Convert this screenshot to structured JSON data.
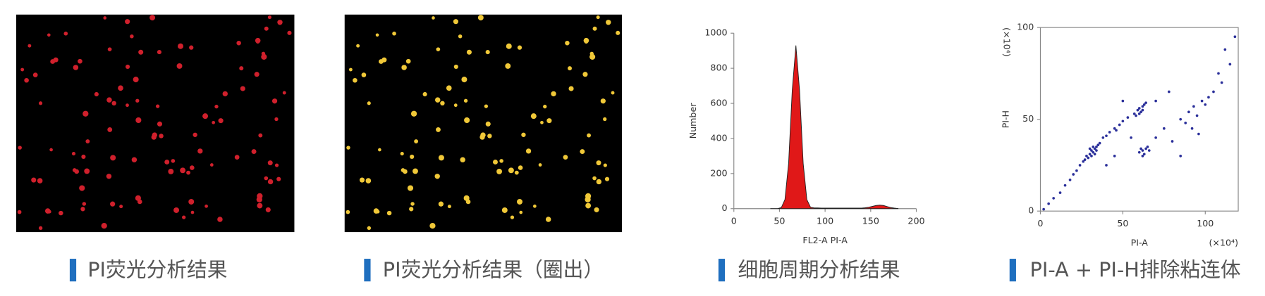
{
  "panels": [
    {
      "caption": "PI荧光分析结果"
    },
    {
      "caption": "PI荧光分析结果（圈出）"
    },
    {
      "caption": "细胞周期分析结果"
    },
    {
      "caption": "PI-A + PI-H排除粘连体"
    }
  ],
  "chart_data": [
    {
      "type": "area",
      "xlabel": "FL2-A PI-A",
      "ylabel": "Number",
      "color": "#e01818",
      "x": [
        40,
        44,
        48,
        52,
        56,
        60,
        64,
        68,
        72,
        76,
        80,
        84,
        88,
        92,
        96,
        100,
        104,
        108,
        112,
        116,
        120,
        124,
        128,
        132,
        136,
        140,
        144,
        148,
        152,
        156,
        160,
        164,
        168,
        172,
        176,
        180
      ],
      "values": [
        0,
        0,
        0,
        6,
        52,
        258,
        675,
        930,
        675,
        258,
        52,
        8,
        4,
        4,
        3,
        3,
        3,
        3,
        3,
        3,
        3,
        3,
        3,
        3,
        3,
        3,
        5,
        8,
        13,
        18,
        20,
        18,
        12,
        6,
        3,
        1
      ],
      "xlim": [
        0,
        200
      ],
      "xticks": [
        0,
        50,
        100,
        150,
        200
      ],
      "ylim": [
        0,
        1000
      ],
      "yticks": [
        0,
        200,
        400,
        600,
        800,
        1000
      ]
    },
    {
      "type": "scatter",
      "xlabel": "PI-A",
      "ylabel": "PI-H",
      "xunit": "(×10⁴)",
      "yunit": "(×10⁴)",
      "color": "#2a2f9a",
      "x": [
        28,
        30,
        31,
        32,
        33,
        34,
        29,
        33,
        35,
        31,
        30,
        27,
        36,
        32,
        34,
        38,
        42,
        45,
        48,
        50,
        53,
        40,
        46,
        57,
        59,
        60,
        62,
        63,
        61,
        58,
        64,
        60,
        62,
        60,
        62,
        64,
        63,
        65,
        61,
        66,
        62,
        85,
        90,
        93,
        95,
        98,
        100,
        88,
        92,
        96,
        102,
        105,
        110,
        115,
        112,
        118,
        108,
        2,
        5,
        8,
        12,
        15,
        18,
        20,
        22,
        24,
        26,
        45,
        70,
        75,
        80,
        55,
        40,
        70,
        78,
        85,
        50
      ],
      "values": [
        30,
        31,
        33,
        32,
        34,
        35,
        29,
        31,
        36,
        30,
        34,
        28,
        37,
        35,
        33,
        40,
        43,
        45,
        47,
        49,
        51,
        41,
        44,
        53,
        55,
        56,
        57,
        58,
        54,
        52,
        59,
        53,
        55,
        32,
        33,
        34,
        31,
        35,
        34,
        33,
        30,
        50,
        54,
        57,
        52,
        60,
        58,
        48,
        45,
        42,
        62,
        65,
        70,
        80,
        88,
        95,
        75,
        1,
        4,
        7,
        10,
        14,
        17,
        20,
        22,
        25,
        27,
        30,
        40,
        45,
        38,
        40,
        25,
        60,
        65,
        30,
        60
      ],
      "xlim": [
        0,
        120
      ],
      "xticks": [
        0,
        50,
        100
      ],
      "ylim": [
        0,
        100
      ],
      "yticks": [
        0,
        50,
        100
      ]
    }
  ]
}
